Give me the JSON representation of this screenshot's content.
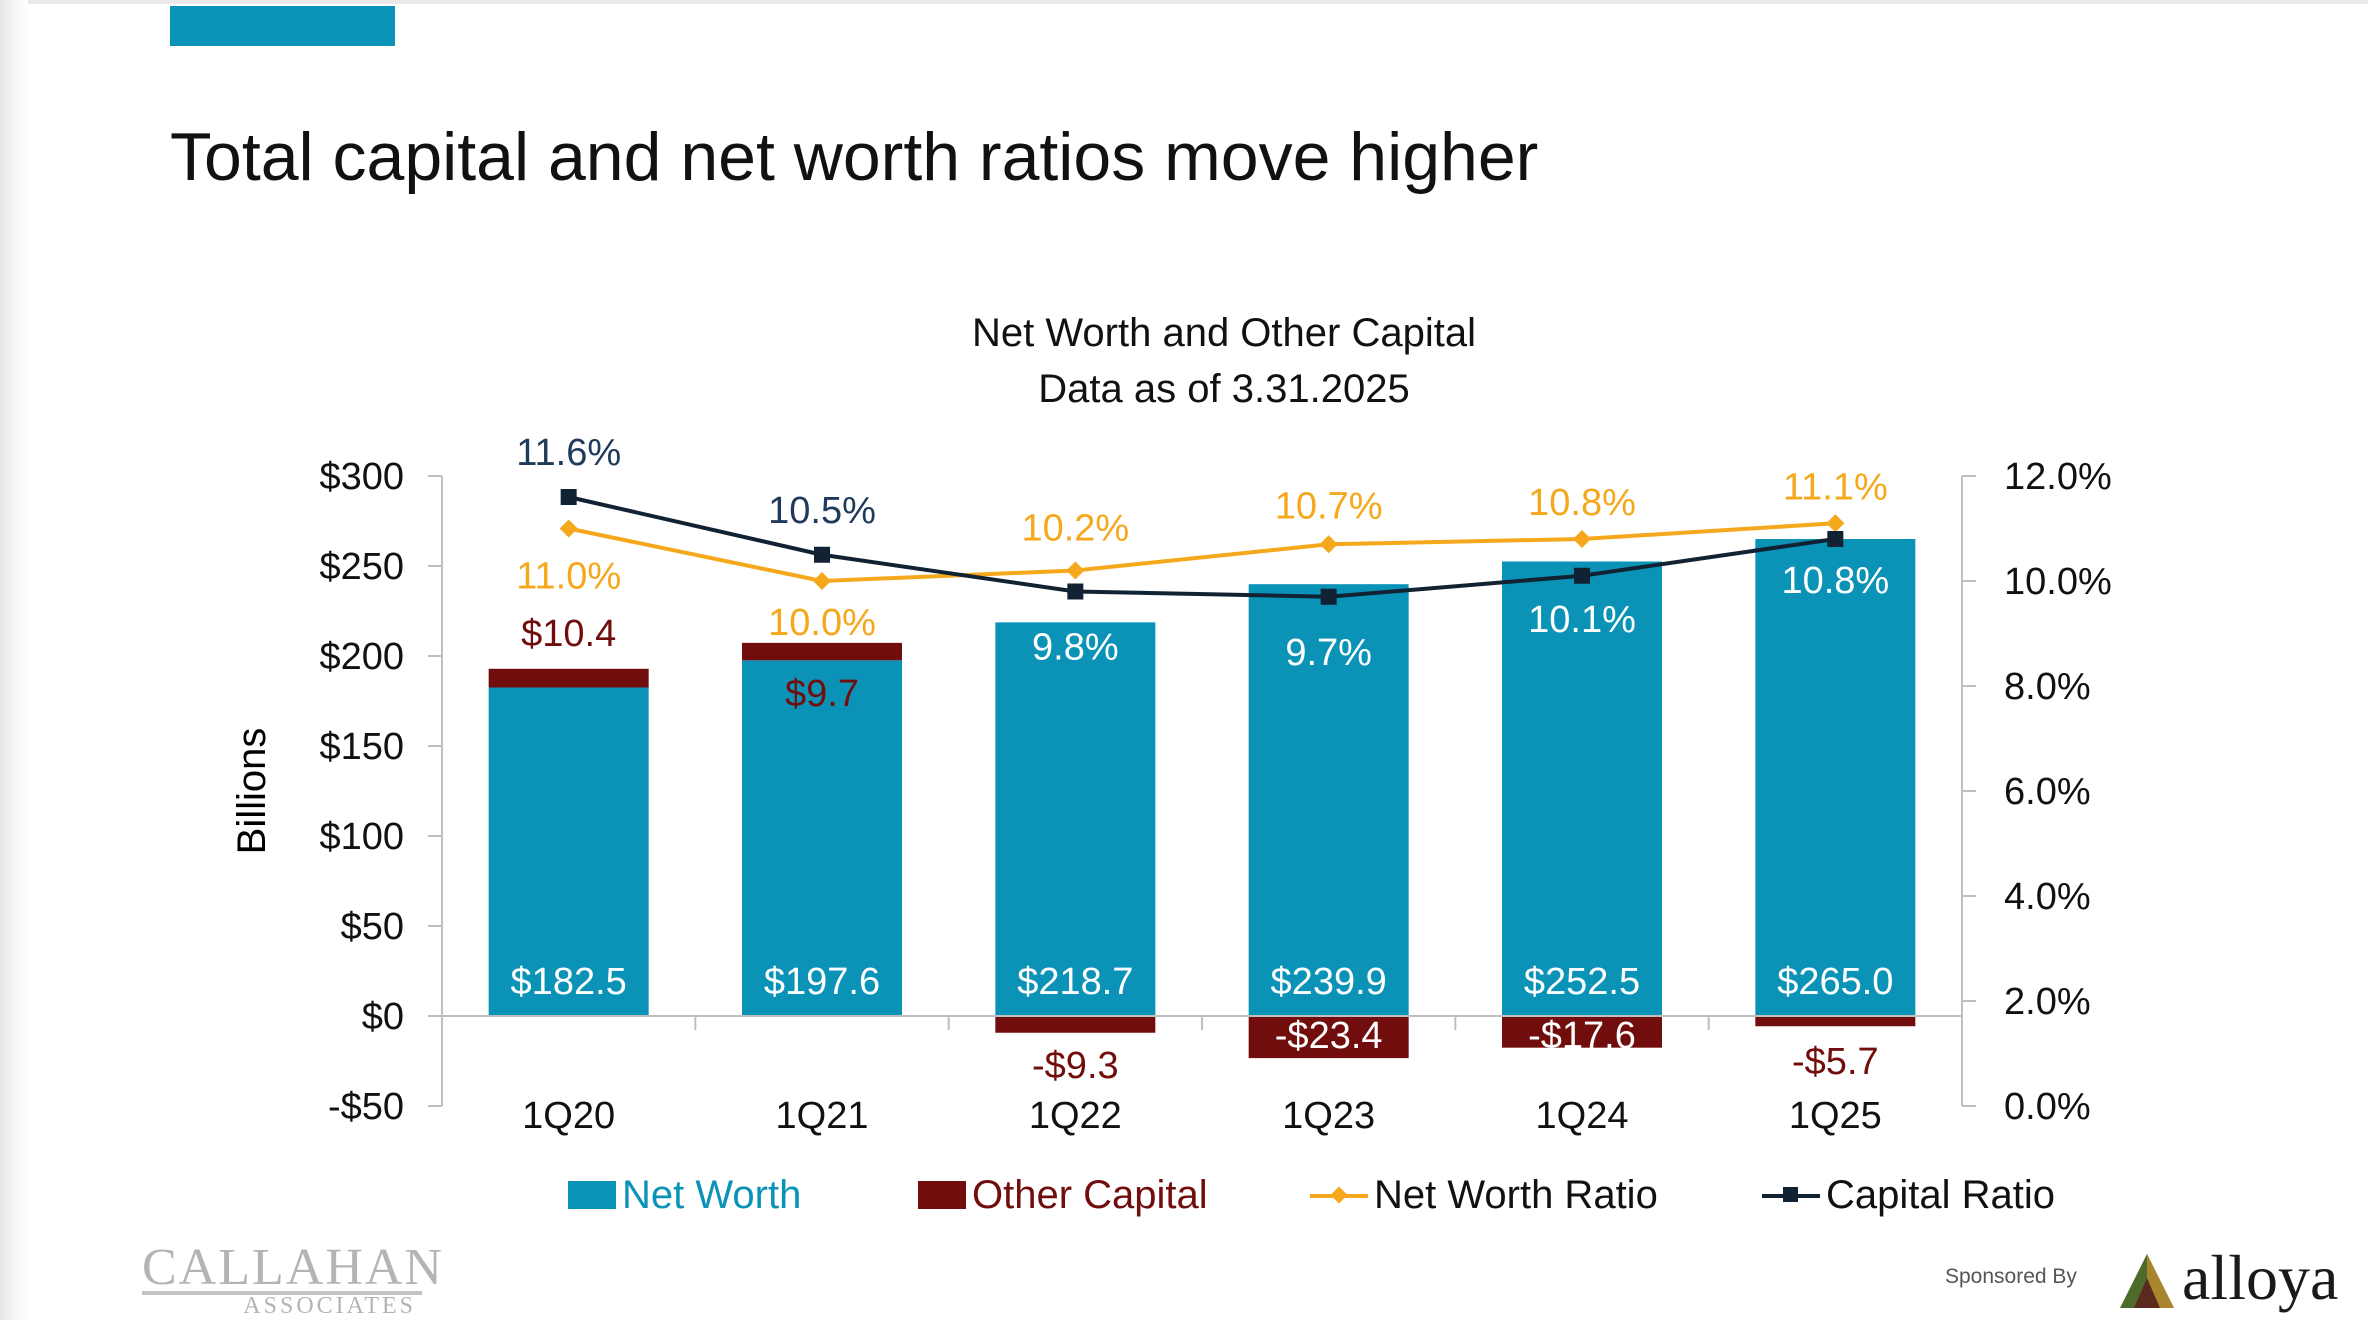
{
  "slide": {
    "title": "Total capital and net worth ratios move higher"
  },
  "chart_data": {
    "type": "bar",
    "title": "Net Worth and Other Capital",
    "subtitle": "Data as of 3.31.2025",
    "ylabel": "Billions",
    "ylabel_right": "",
    "xlabel": "",
    "categories": [
      "1Q20",
      "1Q21",
      "1Q22",
      "1Q23",
      "1Q24",
      "1Q25"
    ],
    "ylim": [
      -50,
      300
    ],
    "y_ticks": [
      -50,
      0,
      50,
      100,
      150,
      200,
      250,
      300
    ],
    "y_tick_labels": [
      "-$50",
      "$0",
      "$50",
      "$100",
      "$150",
      "$200",
      "$250",
      "$300"
    ],
    "y2lim": [
      0,
      12
    ],
    "y2_ticks": [
      0,
      2,
      4,
      6,
      8,
      10,
      12
    ],
    "y2_tick_labels": [
      "0.0%",
      "2.0%",
      "4.0%",
      "6.0%",
      "8.0%",
      "10.0%",
      "12.0%"
    ],
    "grid": false,
    "legend_position": "bottom",
    "series": [
      {
        "name": "Net Worth",
        "kind": "bar",
        "axis": "left",
        "color": "#0a93b7",
        "values": [
          182.5,
          197.6,
          218.7,
          239.9,
          252.5,
          265.0
        ],
        "labels": [
          "$182.5",
          "$197.6",
          "$218.7",
          "$239.9",
          "$252.5",
          "$265.0"
        ]
      },
      {
        "name": "Other Capital",
        "kind": "bar",
        "axis": "left",
        "color": "#720d0d",
        "values": [
          10.4,
          9.7,
          -9.3,
          -23.4,
          -17.6,
          -5.7
        ],
        "labels": [
          "$10.4",
          "$9.7",
          "-$9.3",
          "-$23.4",
          "-$17.6",
          "-$5.7"
        ]
      },
      {
        "name": "Net Worth Ratio",
        "kind": "line",
        "axis": "right",
        "color": "#f5a81c",
        "marker": "diamond",
        "values": [
          11.0,
          10.0,
          10.2,
          10.7,
          10.8,
          11.1
        ],
        "labels": [
          "11.0%",
          "10.0%",
          "10.2%",
          "10.7%",
          "10.8%",
          "11.1%"
        ]
      },
      {
        "name": "Capital Ratio",
        "kind": "line",
        "axis": "right",
        "color": "#112233",
        "marker": "square",
        "values": [
          11.6,
          10.5,
          9.8,
          9.7,
          10.1,
          10.8
        ],
        "labels": [
          "11.6%",
          "10.5%",
          "9.8%",
          "9.7%",
          "10.1%",
          "10.8%"
        ]
      }
    ]
  },
  "footer": {
    "callahan_name": "CALLAHAN",
    "callahan_sub": "ASSOCIATES",
    "sponsored_by": "Sponsored By",
    "sponsor_name": "alloya"
  }
}
